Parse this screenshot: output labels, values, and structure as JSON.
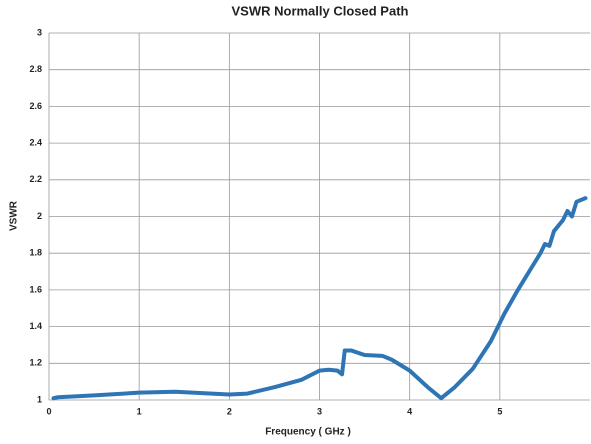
{
  "chart_data": {
    "type": "line",
    "title": "VSWR Normally Closed Path",
    "x_label": "Frequency ( GHz )",
    "y_label": "VSWR",
    "xlim": [
      0,
      6
    ],
    "xticks": [
      0,
      1,
      2,
      3,
      4,
      5
    ],
    "ylim": [
      1,
      3
    ],
    "yticks": [
      1,
      1.2,
      1.4,
      1.6,
      1.8,
      2,
      2.2,
      2.4,
      2.6,
      2.8,
      3
    ],
    "grid": true,
    "series": [
      {
        "name": "VSWR",
        "color": "#2e75b6",
        "x": [
          0.05,
          0.1,
          0.5,
          1,
          1.4,
          2,
          2.2,
          2.5,
          2.8,
          3.0,
          3.1,
          3.2,
          3.25,
          3.28,
          3.35,
          3.5,
          3.7,
          3.8,
          4.0,
          4.2,
          4.35,
          4.5,
          4.7,
          4.9,
          5.05,
          5.2,
          5.35,
          5.45,
          5.5,
          5.55,
          5.6,
          5.7,
          5.75,
          5.8,
          5.85,
          5.95
        ],
        "values": [
          1.01,
          1.015,
          1.025,
          1.04,
          1.045,
          1.03,
          1.035,
          1.07,
          1.11,
          1.16,
          1.165,
          1.16,
          1.14,
          1.27,
          1.27,
          1.245,
          1.24,
          1.22,
          1.16,
          1.07,
          1.01,
          1.07,
          1.17,
          1.32,
          1.47,
          1.6,
          1.72,
          1.8,
          1.85,
          1.84,
          1.92,
          1.98,
          2.03,
          2.0,
          2.08,
          2.1
        ]
      }
    ]
  }
}
